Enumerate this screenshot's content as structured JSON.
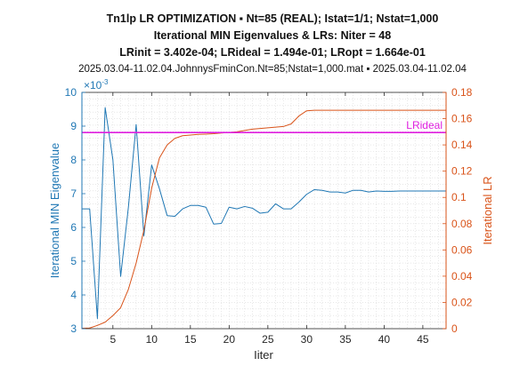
{
  "chart_data": {
    "type": "line",
    "title_lines": [
      "Tn1lp LR OPTIMIZATION ▪ Nt=85 (REAL); Istat=1/1; Nstat=1,000",
      "Iterational MIN Eigenvalues & LRs: Niter = 48",
      "LRinit = 3.402e-04; LRideal = 1.494e-01; LRopt = 1.664e-01",
      "2025.03.04-11.02.04.JohnnysFminCon.Nt=85;Nstat=1,000.mat ▪ 2025.03.04-11.02.04"
    ],
    "xlabel": "Iiter",
    "ylabel_left": "Iterational MIN Eigenvalue",
    "ylabel_right": "Iterational LR",
    "left_exponent": "×10",
    "left_exponent_power": "-3",
    "xlim": [
      1,
      48
    ],
    "ylim_left": [
      3,
      10
    ],
    "ylim_right": [
      0,
      0.18
    ],
    "xticks": [
      "5",
      "10",
      "15",
      "20",
      "25",
      "30",
      "35",
      "40",
      "45"
    ],
    "yticks_left": [
      "3",
      "4",
      "5",
      "6",
      "7",
      "8",
      "9",
      "10"
    ],
    "yticks_right": [
      "0",
      "0.02",
      "0.04",
      "0.06",
      "0.08",
      "0.1",
      "0.12",
      "0.14",
      "0.16",
      "0.18"
    ],
    "grid": "on (minor dotted)",
    "ideal_line": {
      "label": "LRideal",
      "value": 0.1494,
      "color": "#e020e0"
    },
    "series": [
      {
        "axis": "left",
        "color": "#1f77b4",
        "x": [
          1,
          2,
          3,
          4,
          5,
          6,
          7,
          8,
          9,
          10,
          11,
          12,
          13,
          14,
          15,
          16,
          17,
          18,
          19,
          20,
          21,
          22,
          23,
          24,
          25,
          26,
          27,
          28,
          29,
          30,
          31,
          32,
          33,
          34,
          35,
          36,
          37,
          38,
          39,
          40,
          41,
          42,
          43,
          44,
          45,
          46,
          47,
          48
        ],
        "values": [
          6.55,
          6.55,
          3.3,
          9.55,
          8.0,
          4.55,
          6.6,
          9.05,
          5.75,
          7.85,
          7.15,
          6.35,
          6.33,
          6.55,
          6.65,
          6.65,
          6.6,
          6.1,
          6.12,
          6.6,
          6.55,
          6.62,
          6.57,
          6.42,
          6.45,
          6.7,
          6.55,
          6.55,
          6.75,
          6.98,
          7.12,
          7.1,
          7.05,
          7.05,
          7.02,
          7.1,
          7.1,
          7.05,
          7.08,
          7.07,
          7.07,
          7.08,
          7.08,
          7.08,
          7.08,
          7.08,
          7.08,
          7.08
        ]
      },
      {
        "axis": "right",
        "color": "#d95319",
        "x": [
          1,
          2,
          3,
          4,
          5,
          6,
          7,
          8,
          9,
          10,
          11,
          12,
          13,
          14,
          15,
          16,
          17,
          18,
          19,
          20,
          21,
          22,
          23,
          24,
          25,
          26,
          27,
          28,
          29,
          30,
          31,
          32,
          33,
          34,
          35,
          36,
          37,
          38,
          39,
          40,
          41,
          42,
          43,
          44,
          45,
          46,
          47,
          48
        ],
        "values": [
          0.00034,
          0.0005,
          0.0025,
          0.005,
          0.01,
          0.016,
          0.03,
          0.05,
          0.075,
          0.107,
          0.13,
          0.14,
          0.145,
          0.147,
          0.1475,
          0.148,
          0.1482,
          0.1485,
          0.149,
          0.1495,
          0.15,
          0.151,
          0.152,
          0.1525,
          0.153,
          0.1535,
          0.154,
          0.156,
          0.162,
          0.166,
          0.1664,
          0.1664,
          0.1664,
          0.1664,
          0.1664,
          0.1664,
          0.1664,
          0.1664,
          0.1664,
          0.1664,
          0.1664,
          0.1664,
          0.1664,
          0.1664,
          0.1664,
          0.1664,
          0.1664,
          0.1664
        ]
      }
    ]
  }
}
